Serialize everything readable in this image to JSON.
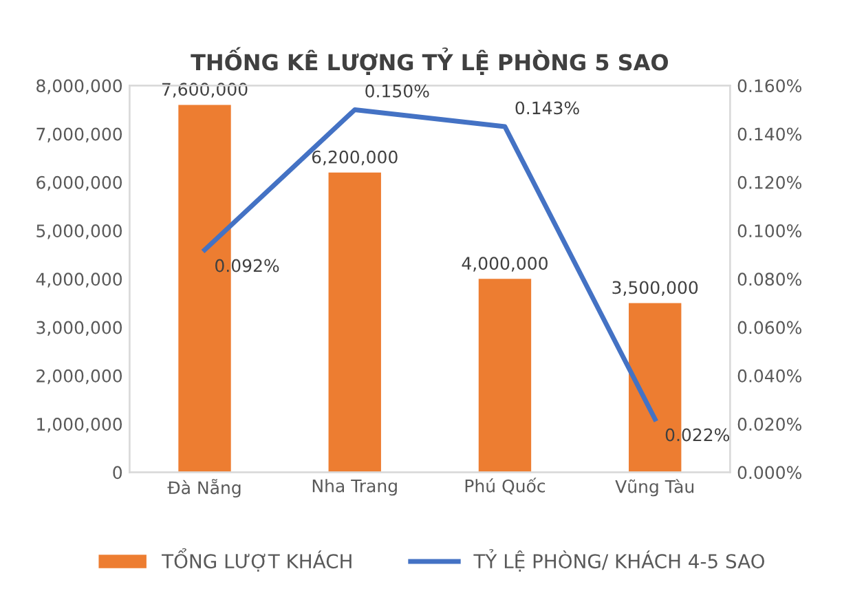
{
  "chart_data": {
    "type": "bar",
    "title": "THỐNG KÊ LƯỢNG TỶ LỆ PHÒNG 5 SAO",
    "categories": [
      "Đà Nẵng",
      "Nha Trang",
      "Phú Quốc",
      "Vũng Tàu"
    ],
    "series": [
      {
        "name": "TỔNG LƯỢT KHÁCH",
        "color": "#ed7d31",
        "values": [
          7600000,
          6200000,
          4000000,
          3500000
        ],
        "value_labels": [
          "7,600,000",
          "6,200,000",
          "4,000,000",
          "3,500,000"
        ]
      },
      {
        "name": "TỶ LỆ PHÒNG/ KHÁCH 4-5 SAO",
        "type": "line",
        "axis": "y2",
        "color": "#4472c4",
        "values": [
          0.092,
          0.15,
          0.143,
          0.022
        ],
        "value_labels": [
          "0.092%",
          "0.150%",
          "0.143%",
          "0.022%"
        ]
      }
    ],
    "ylim": [
      0,
      8000000
    ],
    "yticks": [
      {
        "value": 0,
        "label": "0"
      },
      {
        "value": 1000000,
        "label": "1,000,000"
      },
      {
        "value": 2000000,
        "label": "2,000,000"
      },
      {
        "value": 3000000,
        "label": "3,000,000"
      },
      {
        "value": 4000000,
        "label": "4,000,000"
      },
      {
        "value": 5000000,
        "label": "5,000,000"
      },
      {
        "value": 6000000,
        "label": "6,000,000"
      },
      {
        "value": 7000000,
        "label": "7,000,000"
      },
      {
        "value": 8000000,
        "label": "8,000,000"
      }
    ],
    "y2lim": [
      0,
      0.16
    ],
    "y2ticks": [
      {
        "value": 0,
        "label": "0.000%"
      },
      {
        "value": 0.02,
        "label": "0.020%"
      },
      {
        "value": 0.04,
        "label": "0.040%"
      },
      {
        "value": 0.06,
        "label": "0.060%"
      },
      {
        "value": 0.08,
        "label": "0.080%"
      },
      {
        "value": 0.1,
        "label": "0.100%"
      },
      {
        "value": 0.12,
        "label": "0.120%"
      },
      {
        "value": 0.14,
        "label": "0.140%"
      },
      {
        "value": 0.16,
        "label": "0.160%"
      }
    ],
    "legend": "bottom",
    "grid": false,
    "marker": "none",
    "line_style": "solid"
  }
}
